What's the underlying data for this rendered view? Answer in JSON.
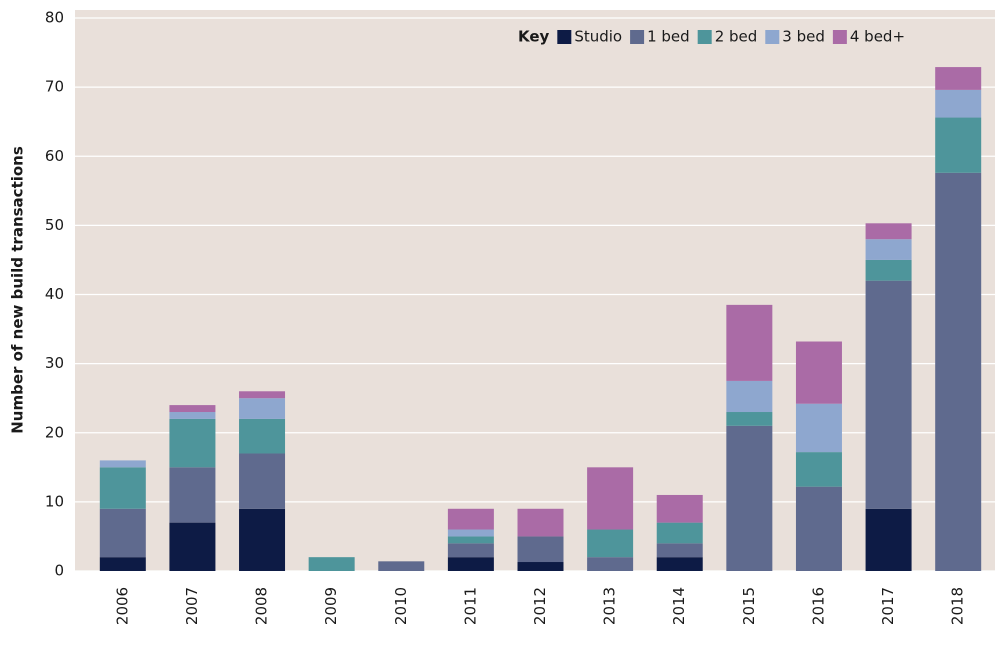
{
  "chart_data": {
    "type": "stacked_bar",
    "y_label": "Number of new build transactions",
    "legend_title": "Key",
    "legend": "top-right",
    "grid": true,
    "categories": [
      "2006",
      "2007",
      "2008",
      "2009",
      "2010",
      "2011",
      "2012",
      "2013",
      "2014",
      "2015",
      "2016",
      "2017",
      "2018"
    ],
    "series": [
      {
        "name": "Studio",
        "color": "#0d1b45",
        "values": [
          2,
          7,
          9,
          0,
          0,
          2,
          1.3,
          0,
          2,
          0,
          0,
          9,
          0
        ]
      },
      {
        "name": "1 bed",
        "color": "#5f6a8e",
        "values": [
          7,
          8,
          8,
          0,
          1.4,
          2,
          3.7,
          2,
          2,
          21,
          12.2,
          33,
          57.6
        ]
      },
      {
        "name": "2 bed",
        "color": "#4e959b",
        "values": [
          6,
          7,
          5,
          2,
          0,
          1,
          0,
          4,
          3,
          2,
          5,
          3,
          8
        ]
      },
      {
        "name": "3 bed",
        "color": "#8ea7cf",
        "values": [
          1,
          1,
          3,
          0,
          0,
          1,
          0,
          0,
          0,
          4.5,
          7,
          3,
          4
        ]
      },
      {
        "name": "4 bed+",
        "color": "#aa6ba6",
        "values": [
          0,
          1,
          1,
          0,
          0,
          3,
          4,
          9,
          4,
          11,
          9,
          2.3,
          3.3
        ]
      }
    ],
    "ylim": [
      0,
      80
    ],
    "yticks": [
      0,
      10,
      20,
      30,
      40,
      50,
      60,
      70,
      80
    ]
  }
}
